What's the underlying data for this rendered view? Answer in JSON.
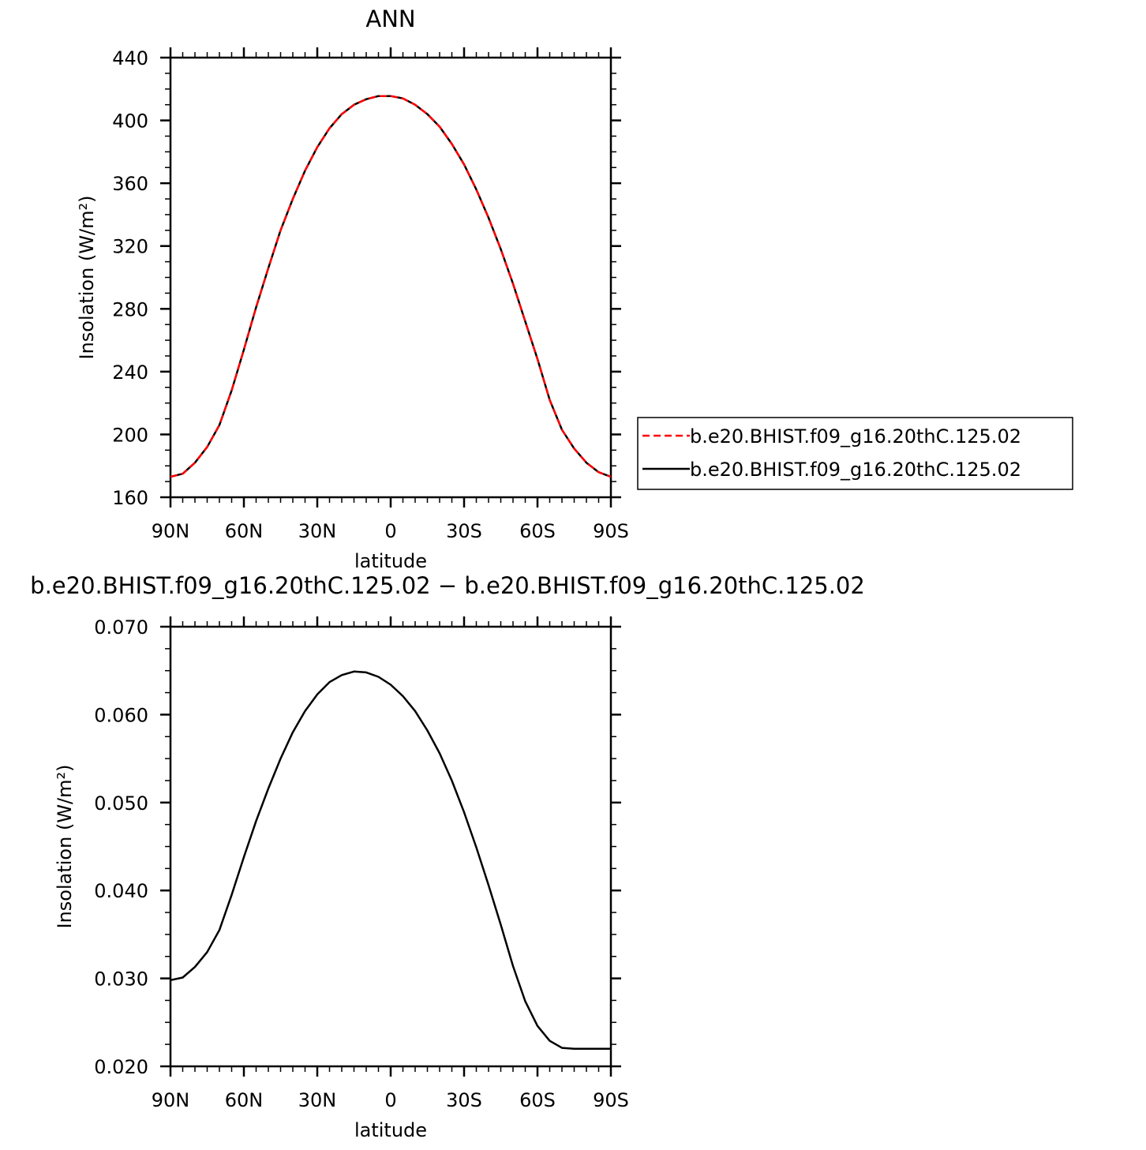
{
  "chart_data": [
    {
      "type": "line",
      "title": "ANN",
      "xlabel": "latitude",
      "ylabel": "Insolation  (W/m²)",
      "x_ticks": [
        90,
        60,
        30,
        0,
        -30,
        -60,
        -90
      ],
      "x_tick_labels": [
        "90N",
        "60N",
        "30N",
        "0",
        "30S",
        "60S",
        "90S"
      ],
      "xlim": [
        90,
        -90
      ],
      "ylim": [
        160,
        440
      ],
      "y_ticks": [
        160,
        200,
        240,
        280,
        320,
        360,
        400,
        440
      ],
      "y_tick_labels": [
        "160",
        "200",
        "240",
        "280",
        "320",
        "360",
        "400",
        "440"
      ],
      "grid": false,
      "legend_position": "right",
      "x": [
        90,
        85,
        80,
        75,
        70,
        65,
        60,
        55,
        50,
        45,
        40,
        35,
        30,
        25,
        20,
        15,
        10,
        5,
        0,
        -5,
        -10,
        -15,
        -20,
        -25,
        -30,
        -35,
        -40,
        -45,
        -50,
        -55,
        -60,
        -65,
        -70,
        -75,
        -80,
        -85,
        -90
      ],
      "series": [
        {
          "name": "b.e20.BHIST.f09_g16.20thC.125.02",
          "color": "#ff0000",
          "style": "dashed",
          "values": [
            173,
            175,
            182,
            192,
            206,
            228,
            254,
            281,
            306,
            330,
            350,
            368,
            383,
            395,
            404,
            410,
            413.5,
            415.5,
            415.5,
            414,
            410,
            404,
            396,
            385,
            372,
            356,
            338,
            318,
            296,
            272,
            248,
            222,
            203,
            191,
            182,
            176,
            173
          ]
        },
        {
          "name": "b.e20.BHIST.f09_g16.20thC.125.02",
          "color": "#000000",
          "style": "solid",
          "values": [
            173,
            175,
            182,
            192,
            206,
            228,
            254,
            281,
            306,
            330,
            350,
            368,
            383,
            395,
            404,
            410,
            413.5,
            415.5,
            415.5,
            414,
            410,
            404,
            396,
            385,
            372,
            356,
            338,
            318,
            296,
            272,
            248,
            222,
            203,
            191,
            182,
            176,
            173
          ]
        }
      ]
    },
    {
      "type": "line",
      "title": "b.e20.BHIST.f09_g16.20thC.125.02  −  b.e20.BHIST.f09_g16.20thC.125.02",
      "xlabel": "latitude",
      "ylabel": "Insolation  (W/m²)",
      "x_ticks": [
        90,
        60,
        30,
        0,
        -30,
        -60,
        -90
      ],
      "x_tick_labels": [
        "90N",
        "60N",
        "30N",
        "0",
        "30S",
        "60S",
        "90S"
      ],
      "xlim": [
        90,
        -90
      ],
      "ylim": [
        0.02,
        0.07
      ],
      "y_ticks": [
        0.02,
        0.03,
        0.04,
        0.05,
        0.06,
        0.07
      ],
      "y_tick_labels": [
        "0.020",
        "0.030",
        "0.040",
        "0.050",
        "0.060",
        "0.070"
      ],
      "grid": false,
      "x": [
        90,
        85,
        80,
        75,
        70,
        65,
        60,
        55,
        50,
        45,
        40,
        35,
        30,
        25,
        20,
        15,
        10,
        5,
        0,
        -5,
        -10,
        -15,
        -20,
        -25,
        -30,
        -35,
        -40,
        -45,
        -50,
        -55,
        -60,
        -65,
        -70,
        -75,
        -80,
        -85,
        -90
      ],
      "series": [
        {
          "color": "#000000",
          "style": "solid",
          "values": [
            0.0298,
            0.0301,
            0.0313,
            0.033,
            0.0355,
            0.0395,
            0.0438,
            0.0479,
            0.0516,
            0.055,
            0.058,
            0.0604,
            0.0623,
            0.0637,
            0.0645,
            0.0649,
            0.0648,
            0.0643,
            0.0634,
            0.0621,
            0.0604,
            0.0582,
            0.0556,
            0.0525,
            0.0489,
            0.0449,
            0.0406,
            0.0361,
            0.0314,
            0.0274,
            0.0246,
            0.0229,
            0.0221,
            0.022,
            0.022,
            0.022,
            0.022
          ]
        }
      ]
    }
  ]
}
